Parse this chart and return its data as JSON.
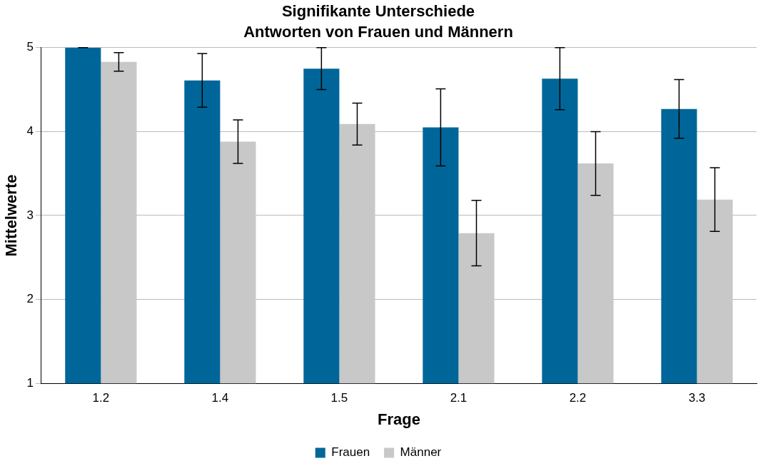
{
  "chart_data": {
    "type": "bar",
    "title": "Signifikante Unterschiede",
    "subtitle": "Antworten von Frauen und Männern",
    "xlabel": "Frage",
    "ylabel": "Mittelwerte",
    "categories": [
      "1.2",
      "1.4",
      "1.5",
      "2.1",
      "2.2",
      "3.3"
    ],
    "series": [
      {
        "name": "Frauen",
        "color": "#006699",
        "values": [
          5.0,
          4.61,
          4.75,
          4.05,
          4.63,
          4.27
        ],
        "errors": [
          0,
          0.32,
          0.25,
          0.46,
          0.37,
          0.35
        ]
      },
      {
        "name": "Männer",
        "color": "#c8c8c8",
        "values": [
          4.83,
          3.88,
          4.09,
          2.79,
          3.62,
          3.19
        ],
        "errors": [
          0.11,
          0.26,
          0.25,
          0.39,
          0.38,
          0.38
        ]
      }
    ],
    "ylim": [
      1,
      5
    ],
    "yticks": [
      1,
      2,
      3,
      4,
      5
    ],
    "grid": "y",
    "legend": "bottom"
  }
}
